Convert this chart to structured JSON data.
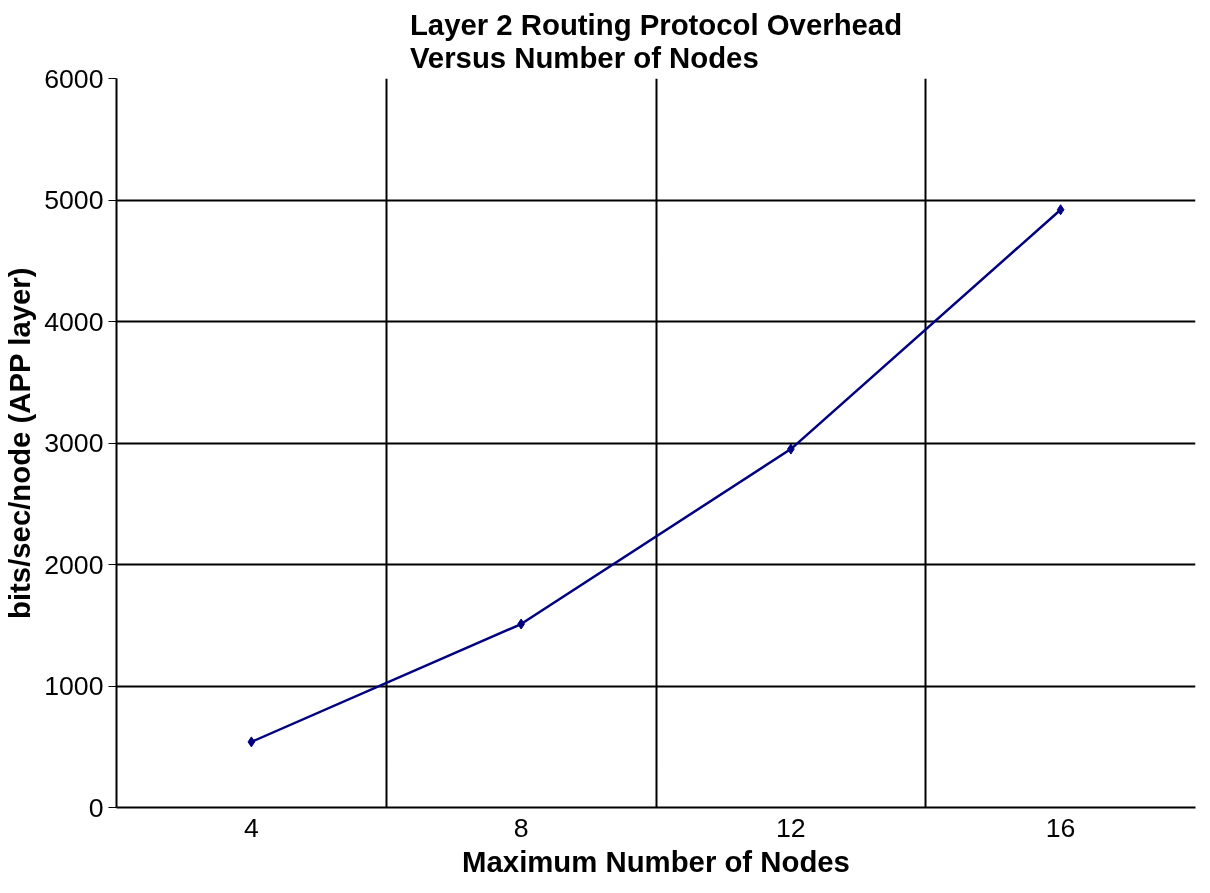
{
  "chart_data": {
    "type": "line",
    "title": "Layer 2 Routing Protocol Overhead\nVersus Number of Nodes",
    "xlabel": "Maximum Number of Nodes",
    "ylabel": "bits/sec/node (APP layer)",
    "categories": [
      "4",
      "8",
      "12",
      "16"
    ],
    "series": [
      {
        "color": "#000080",
        "values": [
          540,
          1510,
          2950,
          4920
        ]
      }
    ],
    "ylim": [
      0,
      6000
    ],
    "yticks": [
      0,
      1000,
      2000,
      3000,
      4000,
      5000,
      6000
    ],
    "grid": true,
    "marker": "diamond",
    "line_style": "solid"
  }
}
